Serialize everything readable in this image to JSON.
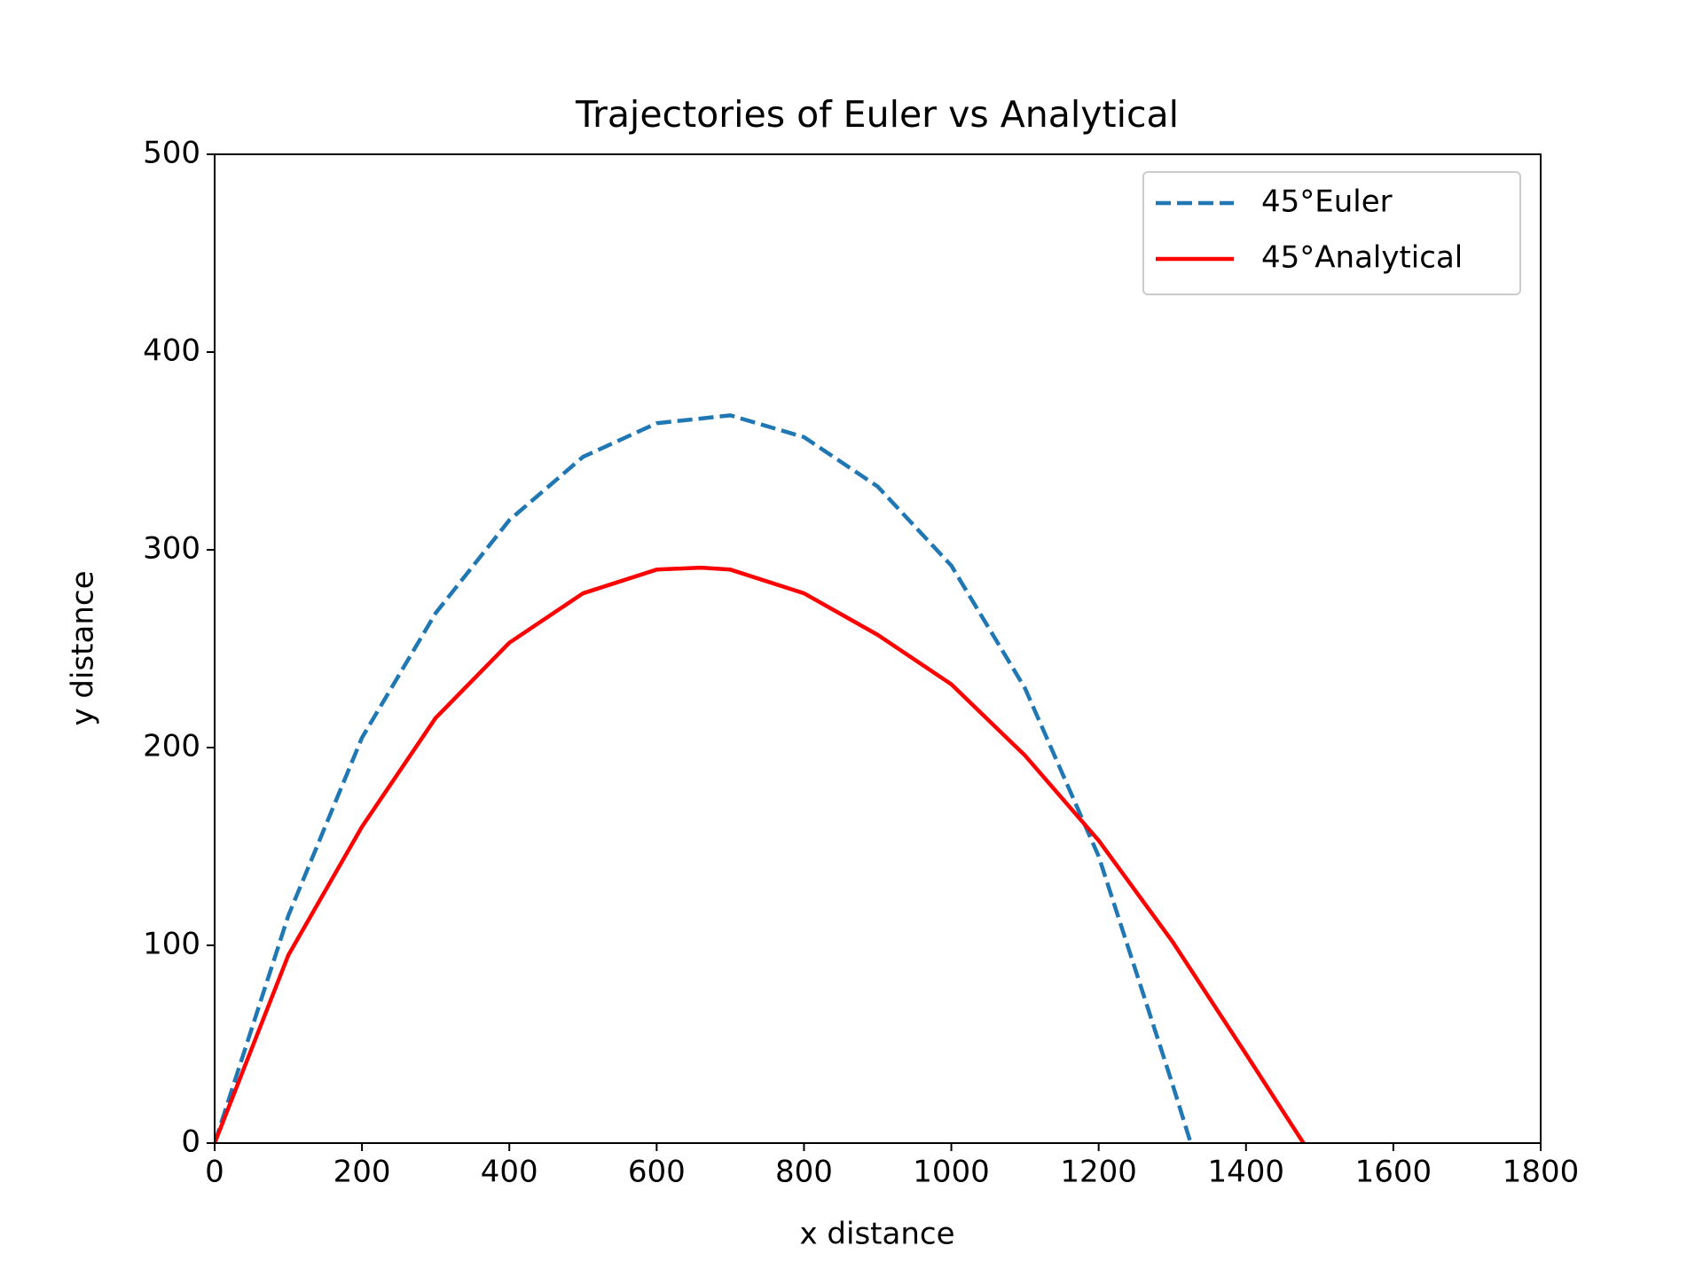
{
  "chart_data": {
    "type": "line",
    "title": "Trajectories of Euler vs Analytical",
    "x_label": "x distance",
    "y_label": "y distance",
    "series": [
      {
        "name": "45°Euler",
        "color": "#1f77b4",
        "dashed": true,
        "x": [
          0,
          100,
          200,
          300,
          400,
          500,
          600,
          700,
          800,
          900,
          1000,
          1100,
          1200,
          1300,
          1325
        ],
        "values": [
          0,
          115,
          205,
          268,
          315,
          347,
          364,
          368,
          357,
          332,
          292,
          230,
          145,
          30,
          0
        ]
      },
      {
        "name": "45°Analytical",
        "color": "#ff0000",
        "dashed": false,
        "x": [
          0,
          100,
          200,
          300,
          400,
          500,
          600,
          660,
          700,
          800,
          900,
          1000,
          1100,
          1200,
          1300,
          1400,
          1478
        ],
        "values": [
          0,
          95,
          160,
          215,
          253,
          278,
          290,
          291,
          290,
          278,
          257,
          232,
          196,
          153,
          102,
          45,
          0
        ]
      }
    ],
    "xlim": [
      0,
      1800
    ],
    "ylim": [
      0,
      500
    ],
    "xticks": [
      0,
      200,
      400,
      600,
      800,
      1000,
      1200,
      1400,
      1600,
      1800
    ],
    "yticks": [
      0,
      100,
      200,
      300,
      400,
      500
    ],
    "legend": "upper right"
  }
}
